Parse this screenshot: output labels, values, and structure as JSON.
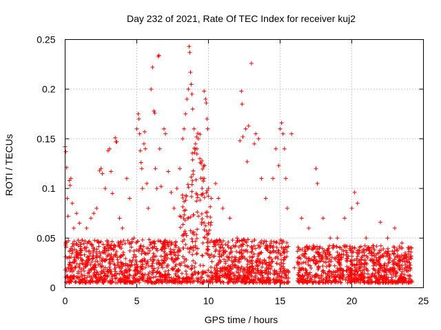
{
  "chart_data": {
    "type": "scatter",
    "title": "Day 232 of 2021, Rate Of TEC Index for receiver kuj2",
    "xlabel": "GPS time / hours",
    "ylabel": "ROTI / TECUs",
    "xlim": [
      0,
      25
    ],
    "ylim": [
      0,
      0.25
    ],
    "xticks": [
      0,
      5,
      10,
      15,
      20,
      25
    ],
    "xtick_labels": [
      "0",
      "5",
      "10",
      "15",
      "20",
      "25"
    ],
    "yticks": [
      0,
      0.05,
      0.1,
      0.15,
      0.2,
      0.25
    ],
    "ytick_labels": [
      "0",
      "0.05",
      "0.1",
      "0.15",
      "0.2",
      "0.25"
    ],
    "grid": true,
    "marker": "+",
    "color": "#ff0000",
    "series": [
      {
        "name": "ROTI",
        "description_of_density": "Dense red + markers from 0 to ~24 h, mostly 0.005–0.05 TECU/s, with gap near 16 h and peaks up to ~0.24 near 8.7 h",
        "points": [
          [
            0.0,
            0.142
          ],
          [
            0.05,
            0.137
          ],
          [
            0.1,
            0.121
          ],
          [
            0.15,
            0.09
          ],
          [
            0.2,
            0.072
          ],
          [
            0.3,
            0.108
          ],
          [
            0.35,
            0.103
          ],
          [
            0.4,
            0.11
          ],
          [
            0.5,
            0.085
          ],
          [
            0.6,
            0.06
          ],
          [
            0.8,
            0.075
          ],
          [
            1.0,
            0.065
          ],
          [
            1.2,
            0.048
          ],
          [
            1.5,
            0.06
          ],
          [
            1.8,
            0.07
          ],
          [
            2.0,
            0.075
          ],
          [
            2.2,
            0.08
          ],
          [
            2.4,
            0.118
          ],
          [
            2.5,
            0.12
          ],
          [
            2.6,
            0.115
          ],
          [
            2.8,
            0.1
          ],
          [
            3.0,
            0.138
          ],
          [
            3.1,
            0.14
          ],
          [
            3.2,
            0.117
          ],
          [
            3.3,
            0.095
          ],
          [
            3.5,
            0.151
          ],
          [
            3.55,
            0.147
          ],
          [
            3.6,
            0.147
          ],
          [
            3.8,
            0.07
          ],
          [
            4.0,
            0.06
          ],
          [
            4.3,
            0.11
          ],
          [
            4.5,
            0.09
          ],
          [
            4.8,
            0.05
          ],
          [
            5.0,
            0.16
          ],
          [
            5.1,
            0.175
          ],
          [
            5.15,
            0.17
          ],
          [
            5.2,
            0.155
          ],
          [
            5.25,
            0.138
          ],
          [
            5.3,
            0.126
          ],
          [
            5.35,
            0.12
          ],
          [
            5.4,
            0.1
          ],
          [
            5.5,
            0.145
          ],
          [
            5.55,
            0.157
          ],
          [
            5.6,
            0.14
          ],
          [
            5.7,
            0.105
          ],
          [
            5.8,
            0.08
          ],
          [
            6.0,
            0.2
          ],
          [
            6.1,
            0.222
          ],
          [
            6.2,
            0.178
          ],
          [
            6.25,
            0.176
          ],
          [
            6.3,
            0.12
          ],
          [
            6.4,
            0.1
          ],
          [
            6.5,
            0.233
          ],
          [
            6.55,
            0.234
          ],
          [
            6.6,
            0.14
          ],
          [
            6.7,
            0.102
          ],
          [
            6.9,
            0.16
          ],
          [
            7.0,
            0.155
          ],
          [
            7.2,
            0.117
          ],
          [
            7.4,
            0.096
          ],
          [
            7.6,
            0.08
          ],
          [
            7.8,
            0.1
          ],
          [
            8.0,
            0.12
          ],
          [
            8.2,
            0.15
          ],
          [
            8.3,
            0.16
          ],
          [
            8.4,
            0.175
          ],
          [
            8.5,
            0.19
          ],
          [
            8.6,
            0.2
          ],
          [
            8.65,
            0.243
          ],
          [
            8.7,
            0.237
          ],
          [
            8.75,
            0.217
          ],
          [
            8.8,
            0.205
          ],
          [
            8.85,
            0.195
          ],
          [
            8.9,
            0.18
          ],
          [
            9.0,
            0.16
          ],
          [
            9.1,
            0.145
          ],
          [
            9.2,
            0.14
          ],
          [
            9.3,
            0.15
          ],
          [
            9.4,
            0.13
          ],
          [
            9.5,
            0.125
          ],
          [
            9.6,
            0.11
          ],
          [
            9.7,
            0.198
          ],
          [
            9.8,
            0.19
          ],
          [
            9.85,
            0.186
          ],
          [
            9.9,
            0.17
          ],
          [
            9.95,
            0.16
          ],
          [
            10.0,
            0.1
          ],
          [
            10.2,
            0.09
          ],
          [
            10.5,
            0.105
          ],
          [
            10.7,
            0.09
          ],
          [
            11.0,
            0.08
          ],
          [
            11.5,
            0.07
          ],
          [
            12.0,
            0.05
          ],
          [
            12.2,
            0.148
          ],
          [
            12.3,
            0.198
          ],
          [
            12.35,
            0.185
          ],
          [
            12.4,
            0.152
          ],
          [
            12.6,
            0.16
          ],
          [
            12.7,
            0.127
          ],
          [
            12.8,
            0.163
          ],
          [
            13.0,
            0.226
          ],
          [
            13.2,
            0.145
          ],
          [
            13.3,
            0.155
          ],
          [
            13.5,
            0.15
          ],
          [
            13.7,
            0.11
          ],
          [
            14.0,
            0.09
          ],
          [
            14.5,
            0.11
          ],
          [
            14.7,
            0.14
          ],
          [
            14.9,
            0.123
          ],
          [
            15.0,
            0.16
          ],
          [
            15.1,
            0.166
          ],
          [
            15.2,
            0.155
          ],
          [
            15.3,
            0.14
          ],
          [
            15.4,
            0.11
          ],
          [
            15.5,
            0.08
          ],
          [
            15.8,
            0.155
          ],
          [
            16.0,
            0.02
          ],
          [
            16.5,
            0.07
          ],
          [
            17.0,
            0.06
          ],
          [
            17.5,
            0.12
          ],
          [
            17.6,
            0.105
          ],
          [
            18.0,
            0.07
          ],
          [
            18.5,
            0.05
          ],
          [
            19.0,
            0.05
          ],
          [
            19.5,
            0.07
          ],
          [
            20.0,
            0.08
          ],
          [
            20.2,
            0.096
          ],
          [
            20.4,
            0.085
          ],
          [
            21.0,
            0.05
          ],
          [
            21.5,
            0.04
          ],
          [
            22.0,
            0.066
          ],
          [
            22.5,
            0.05
          ],
          [
            23.0,
            0.06
          ],
          [
            23.5,
            0.045
          ],
          [
            24.0,
            0.04
          ]
        ]
      }
    ]
  }
}
